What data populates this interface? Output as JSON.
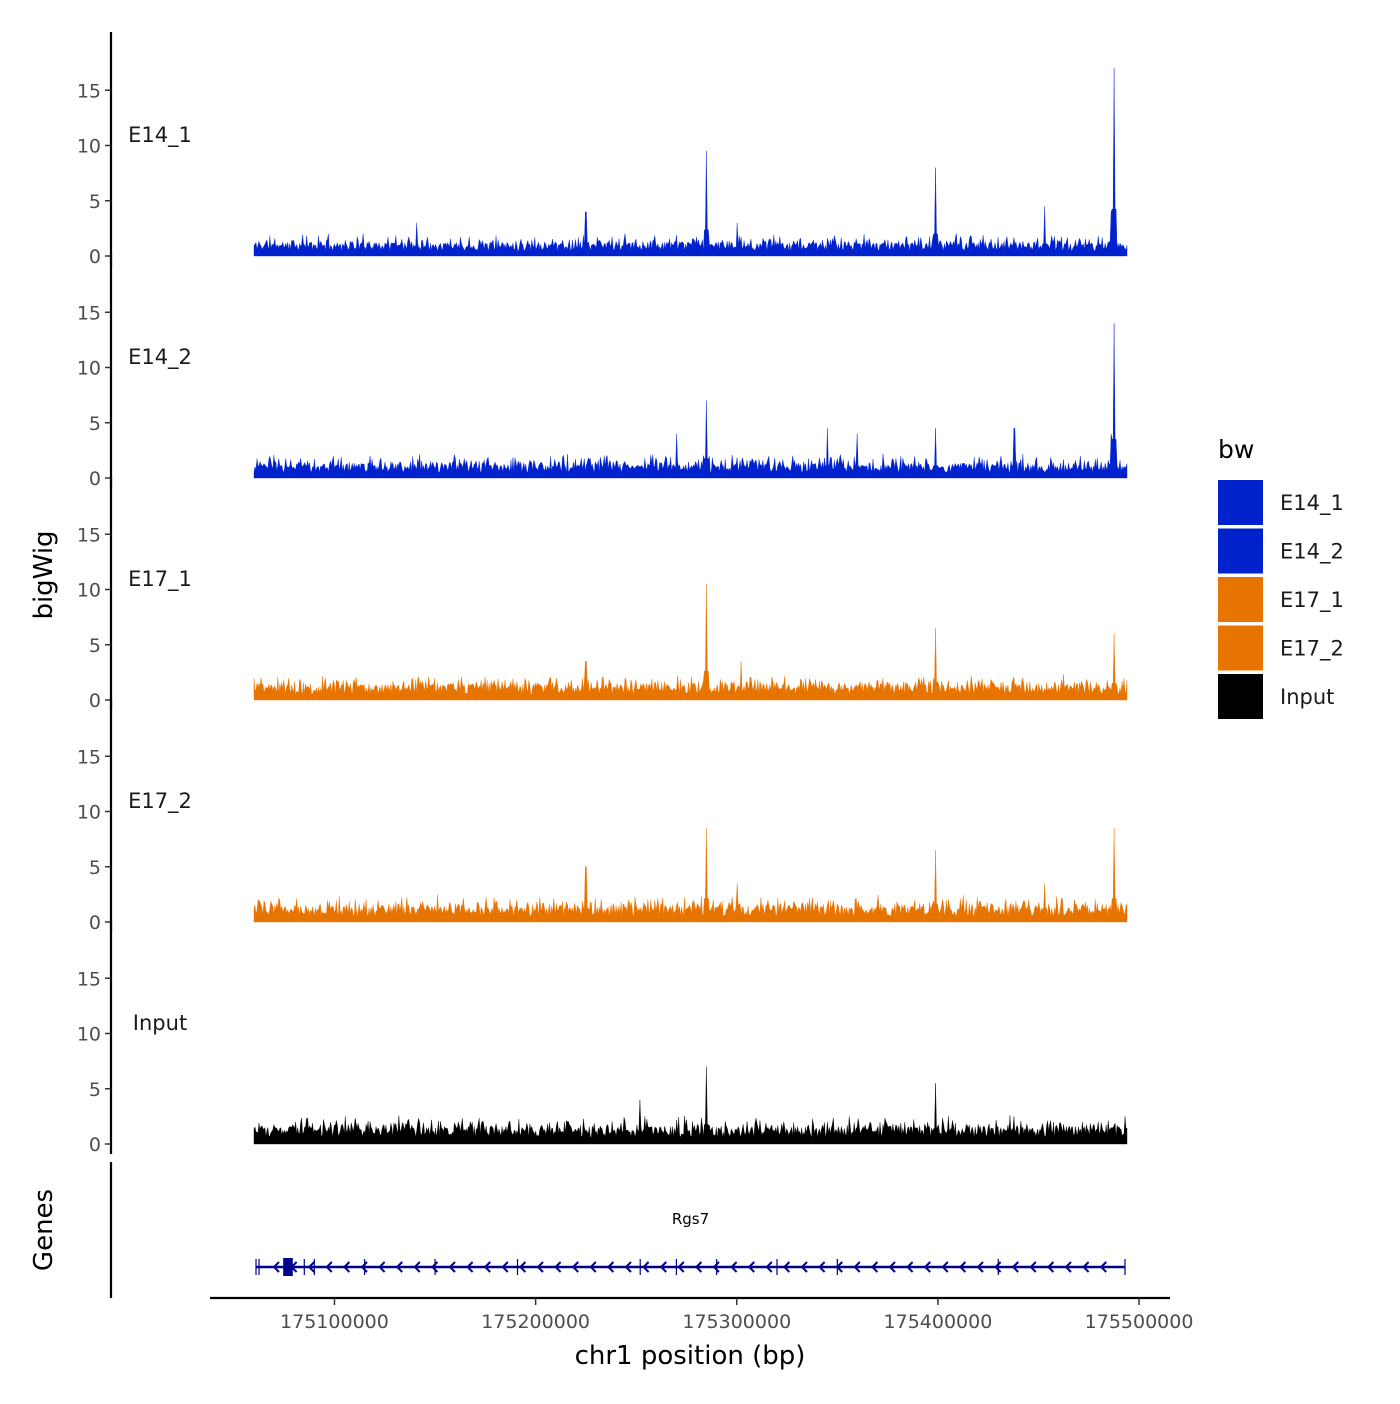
{
  "chart_data": {
    "type": "area",
    "title": "",
    "xlabel": "chr1 position (bp)",
    "ylabel": "bigWig",
    "genes_label": "Genes",
    "xlim": [
      175060000,
      175494000
    ],
    "ylim": [
      0,
      17.5
    ],
    "x_ticks": [
      175100000,
      175200000,
      175300000,
      175400000,
      175500000
    ],
    "x_tick_labels": [
      "175100000",
      "175200000",
      "175300000",
      "175400000",
      "175500000"
    ],
    "y_ticks": [
      0,
      5,
      10,
      15
    ],
    "y_tick_labels": [
      "0",
      "5",
      "10",
      "15"
    ],
    "grid": false,
    "legend": {
      "title": "bw",
      "position": "right",
      "entries": [
        {
          "label": "E14_1",
          "color": "#0022CC"
        },
        {
          "label": "E14_2",
          "color": "#0022CC"
        },
        {
          "label": "E17_1",
          "color": "#E87400"
        },
        {
          "label": "E17_2",
          "color": "#E87400"
        },
        {
          "label": "Input",
          "color": "#000000"
        }
      ]
    },
    "series": [
      {
        "name": "E14_1",
        "color": "#0022CC",
        "baseline": 1.2,
        "noise": 0.9,
        "seed": 11,
        "peaks": [
          [
            175141000,
            3.0
          ],
          [
            175225000,
            4.0
          ],
          [
            175285000,
            9.5
          ],
          [
            175300000,
            3.0
          ],
          [
            175399000,
            8.0
          ],
          [
            175453000,
            4.5
          ],
          [
            175486000,
            4.0
          ],
          [
            175487500,
            17.0
          ]
        ]
      },
      {
        "name": "E14_2",
        "color": "#0022CC",
        "baseline": 1.3,
        "noise": 1.0,
        "seed": 23,
        "peaks": [
          [
            175270000,
            4.0
          ],
          [
            175285000,
            7.0
          ],
          [
            175345000,
            4.5
          ],
          [
            175360000,
            4.0
          ],
          [
            175399000,
            4.5
          ],
          [
            175438000,
            4.5
          ],
          [
            175486000,
            4.0
          ],
          [
            175487500,
            14.0
          ]
        ]
      },
      {
        "name": "E17_1",
        "color": "#E87400",
        "baseline": 1.4,
        "noise": 1.0,
        "seed": 37,
        "peaks": [
          [
            175225000,
            3.5
          ],
          [
            175285000,
            10.5
          ],
          [
            175302000,
            3.5
          ],
          [
            175399000,
            6.5
          ],
          [
            175487500,
            6.0
          ]
        ]
      },
      {
        "name": "E17_2",
        "color": "#E87400",
        "baseline": 1.4,
        "noise": 1.1,
        "seed": 53,
        "peaks": [
          [
            175225000,
            5.0
          ],
          [
            175285000,
            8.5
          ],
          [
            175300000,
            3.5
          ],
          [
            175399000,
            6.5
          ],
          [
            175453000,
            3.5
          ],
          [
            175487500,
            8.5
          ]
        ]
      },
      {
        "name": "Input",
        "color": "#000000",
        "baseline": 1.6,
        "noise": 1.1,
        "seed": 71,
        "peaks": [
          [
            175252000,
            4.0
          ],
          [
            175285000,
            7.0
          ],
          [
            175399000,
            5.5
          ]
        ]
      }
    ],
    "genes": [
      {
        "name": "Rgs7",
        "start": 175061000,
        "end": 175493000,
        "strand": "-",
        "color": "#00008B",
        "exons": [
          175061000,
          175062500,
          175076000,
          175077000,
          175077800,
          175078500,
          175085000,
          175090000,
          175115000,
          175150000,
          175191000,
          175252000,
          175270000,
          175290000,
          175320000,
          175350000,
          175430000,
          175493000
        ]
      }
    ]
  }
}
